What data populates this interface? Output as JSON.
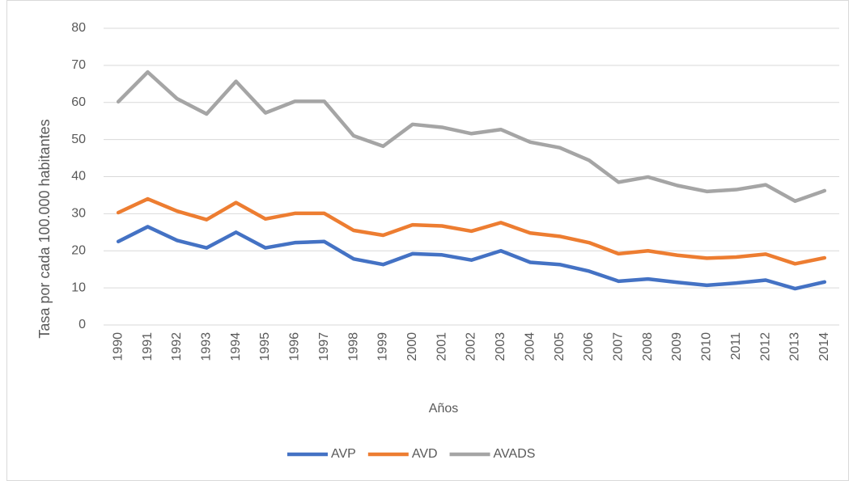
{
  "chart_data": {
    "type": "line",
    "x_label": "Años",
    "y_label": "Tasa por cada 100.000 habitantes",
    "categories": [
      "1990",
      "1991",
      "1992",
      "1993",
      "1994",
      "1995",
      "1996",
      "1997",
      "1998",
      "1999",
      "2000",
      "2001",
      "2002",
      "2003",
      "2004",
      "2005",
      "2006",
      "2007",
      "2008",
      "2009",
      "2010",
      "2011",
      "2012",
      "2013",
      "2014"
    ],
    "series": [
      {
        "name": "AVP",
        "color": "#4472c4",
        "values": [
          22.5,
          26.5,
          22.8,
          20.8,
          25,
          20.8,
          22.2,
          22.5,
          17.8,
          16.3,
          19.2,
          18.9,
          17.5,
          20,
          16.9,
          16.3,
          14.5,
          11.8,
          12.4,
          11.5,
          10.7,
          11.3,
          12.1,
          9.8,
          11.6
        ]
      },
      {
        "name": "AVD",
        "color": "#ed7d31",
        "values": [
          30.3,
          34,
          30.7,
          28.4,
          33,
          28.6,
          30.1,
          30.1,
          25.5,
          24.2,
          27,
          26.7,
          25.3,
          27.6,
          24.8,
          23.9,
          22.2,
          19.2,
          20,
          18.8,
          18,
          18.3,
          19.1,
          16.5,
          18.1
        ]
      },
      {
        "name": "AVADS",
        "color": "#a5a5a5",
        "values": [
          60.2,
          68.2,
          61,
          56.9,
          65.7,
          57.2,
          60.3,
          60.3,
          51,
          48.2,
          54.1,
          53.3,
          51.6,
          52.7,
          49.3,
          47.8,
          44.4,
          38.5,
          39.9,
          37.6,
          36,
          36.5,
          37.8,
          33.4,
          36.2
        ]
      }
    ],
    "ylim": [
      0,
      80
    ],
    "yticks": [
      0,
      10,
      20,
      30,
      40,
      50,
      60,
      70,
      80
    ],
    "grid": true,
    "legend": "bottom"
  }
}
